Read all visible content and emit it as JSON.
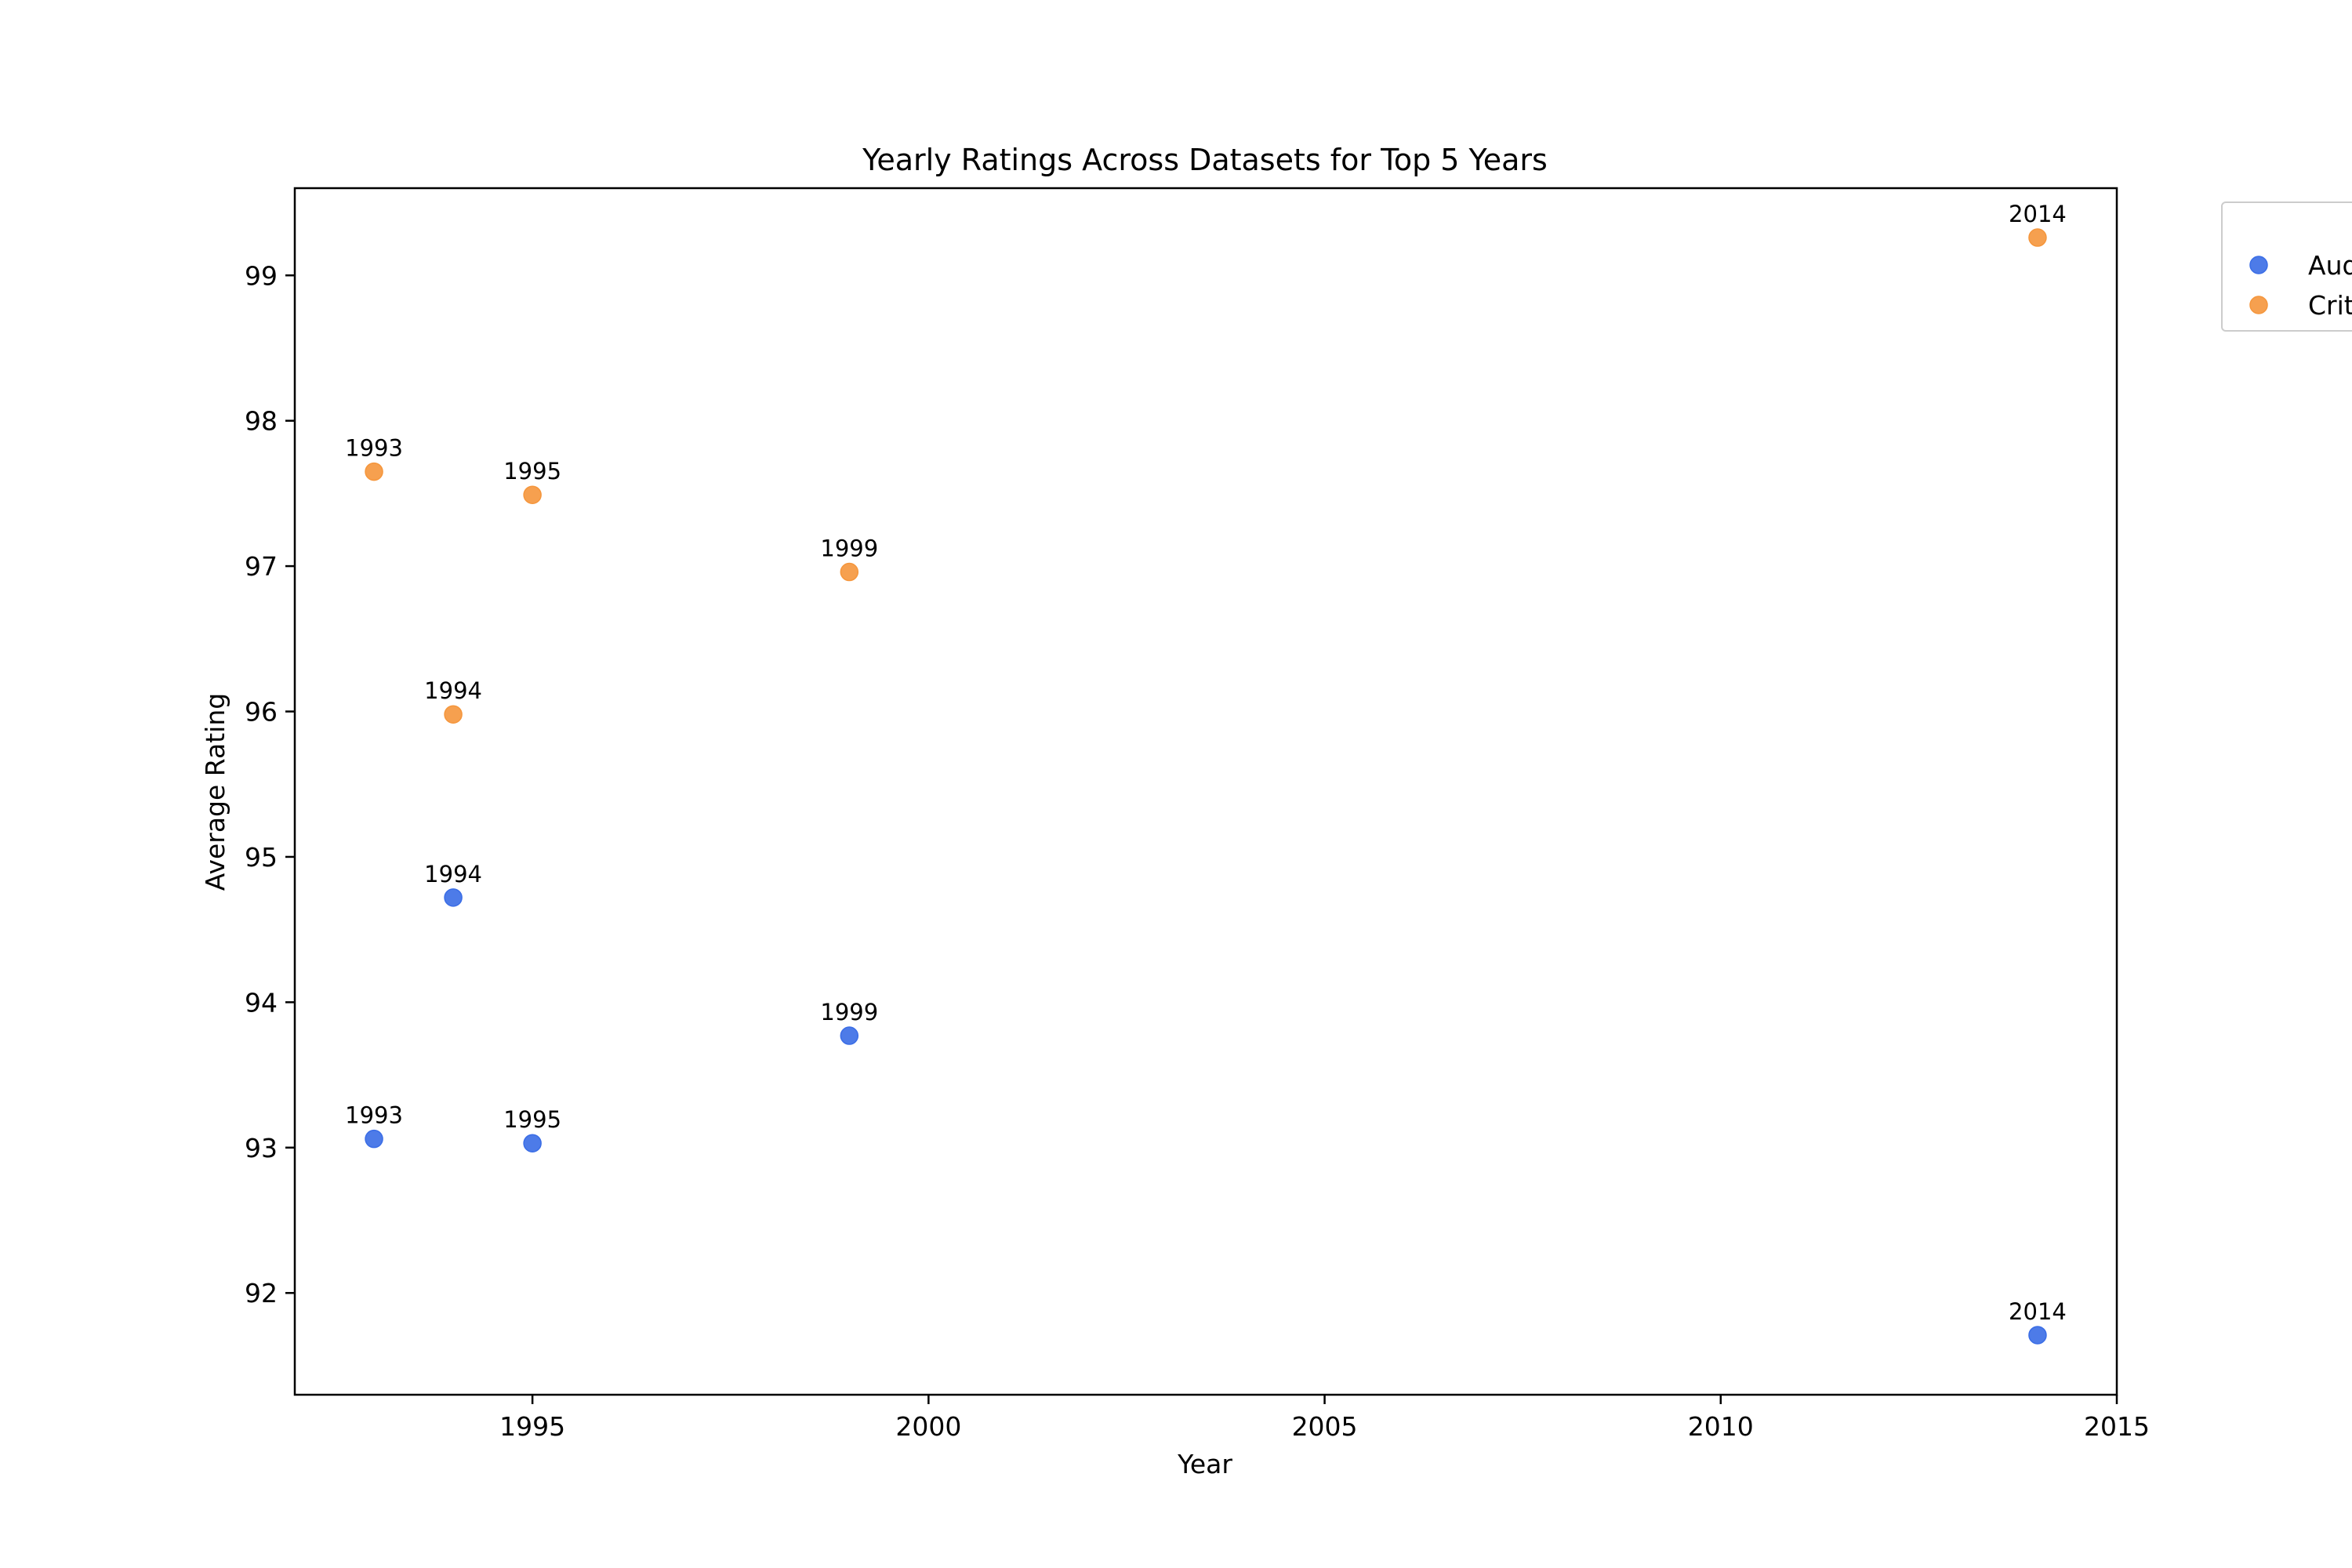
{
  "chart_data": {
    "type": "scatter",
    "title": "Yearly Ratings Across Datasets for Top 5 Years",
    "xlabel": "Year",
    "ylabel": "Average Rating",
    "xlim": [
      1992,
      2015
    ],
    "ylim": [
      91.3,
      99.6
    ],
    "xticks": [
      1995,
      2000,
      2005,
      2010,
      2015
    ],
    "yticks": [
      92,
      93,
      94,
      95,
      96,
      97,
      98,
      99
    ],
    "grid": false,
    "legend_position": "top-right, partially outside plot",
    "series": [
      {
        "name": "Aud",
        "color": "#3a6de6",
        "points": [
          {
            "x": 1993,
            "y": 93.06,
            "label": "1993"
          },
          {
            "x": 1994,
            "y": 94.72,
            "label": "1994"
          },
          {
            "x": 1995,
            "y": 93.03,
            "label": "1995"
          },
          {
            "x": 1999,
            "y": 93.77,
            "label": "1999"
          },
          {
            "x": 2014,
            "y": 91.71,
            "label": "2014"
          }
        ]
      },
      {
        "name": "Crit",
        "color": "#f5963c",
        "points": [
          {
            "x": 1993,
            "y": 97.65,
            "label": "1993"
          },
          {
            "x": 1994,
            "y": 95.98,
            "label": "1994"
          },
          {
            "x": 1995,
            "y": 97.49,
            "label": "1995"
          },
          {
            "x": 1999,
            "y": 96.96,
            "label": "1999"
          },
          {
            "x": 2014,
            "y": 99.26,
            "label": "2014"
          }
        ]
      }
    ]
  }
}
